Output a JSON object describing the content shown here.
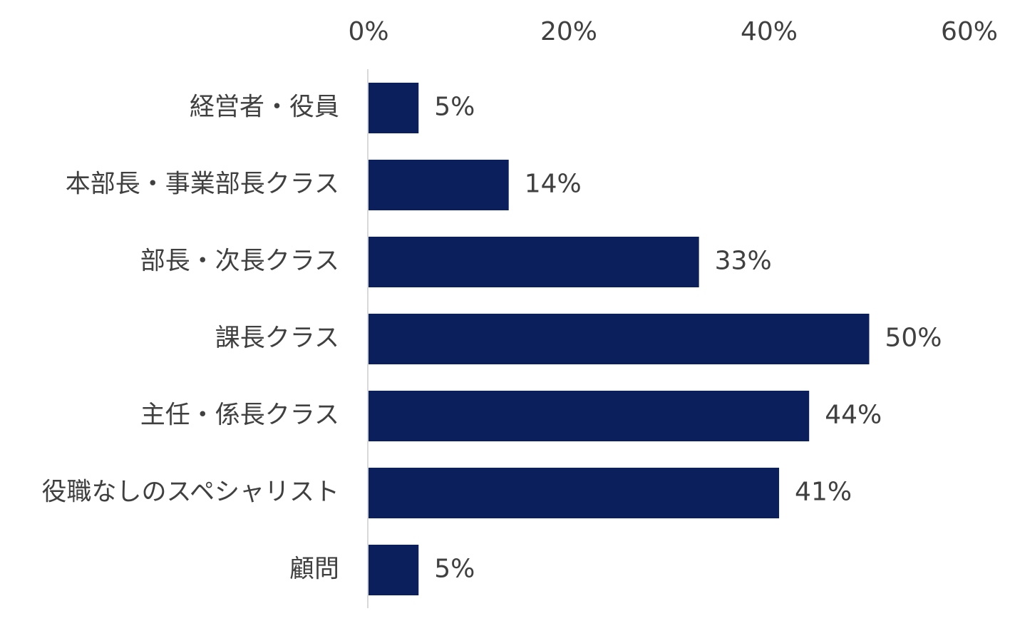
{
  "chart_data": {
    "type": "bar",
    "orientation": "horizontal",
    "categories": [
      "経営者・役員",
      "本部長・事業部長クラス",
      "部長・次長クラス",
      "課長クラス",
      "主任・係長クラス",
      "役職なしのスペシャリスト",
      "顧問"
    ],
    "values": [
      5,
      14,
      33,
      50,
      44,
      41,
      5
    ],
    "value_labels": [
      "5%",
      "14%",
      "33%",
      "50%",
      "44%",
      "41%",
      "5%"
    ],
    "title": "",
    "xlabel": "",
    "ylabel": "",
    "xlim": [
      0,
      60
    ],
    "x_ticks": [
      0,
      20,
      40,
      60
    ],
    "x_tick_labels": [
      "0%",
      "20%",
      "40%",
      "60%"
    ],
    "x_axis_position": "top",
    "grid": false,
    "legend": "none",
    "bar_color": "#0A1F5C",
    "axis_line_color": "#D9D9D9",
    "text_color": "#404040"
  }
}
